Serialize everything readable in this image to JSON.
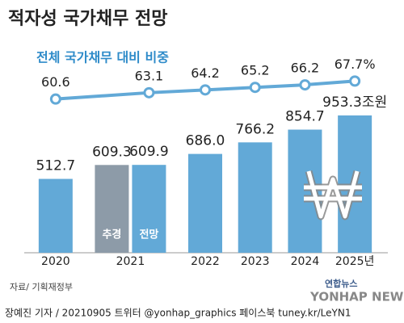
{
  "chart_data": {
    "type": "bar",
    "title": "적자성 국가채무 전망",
    "line_title": "전체 국가채무 대비 비중",
    "categories": [
      "2020",
      "2021",
      "2022",
      "2023",
      "2024",
      "2025년"
    ],
    "series": [
      {
        "name": "추경",
        "color": "#8d9ba8",
        "values": [
          null,
          609.3,
          null,
          null,
          null,
          null
        ],
        "value_labels": [
          null,
          "609.3",
          null,
          null,
          null,
          null
        ]
      },
      {
        "name": "전망",
        "color": "#62a9d7",
        "values": [
          512.7,
          609.9,
          686.0,
          766.2,
          854.7,
          953.3
        ],
        "value_labels": [
          "512.7",
          "609.9",
          "686.0",
          "766.2",
          "854.7",
          "953.3조원"
        ]
      },
      {
        "type": "line",
        "axis": "y2",
        "color": "#62a9d7",
        "values": [
          60.6,
          63.1,
          64.2,
          65.2,
          66.2,
          67.7
        ],
        "value_labels": [
          "60.6",
          "63.1",
          "64.2",
          "65.2",
          "66.2",
          "67.7%"
        ]
      }
    ],
    "ylim": [
      0,
      1250
    ],
    "y2lim": [
      0,
      71
    ],
    "source": "자료/ 기획재정부",
    "credit": "장예진 기자 / 20210905 트위터 @yonhap_graphics  페이스북 tuney.kr/LeYN1",
    "watermark": "연합뉴스",
    "watermark_en": "YONHAP NEWS"
  }
}
